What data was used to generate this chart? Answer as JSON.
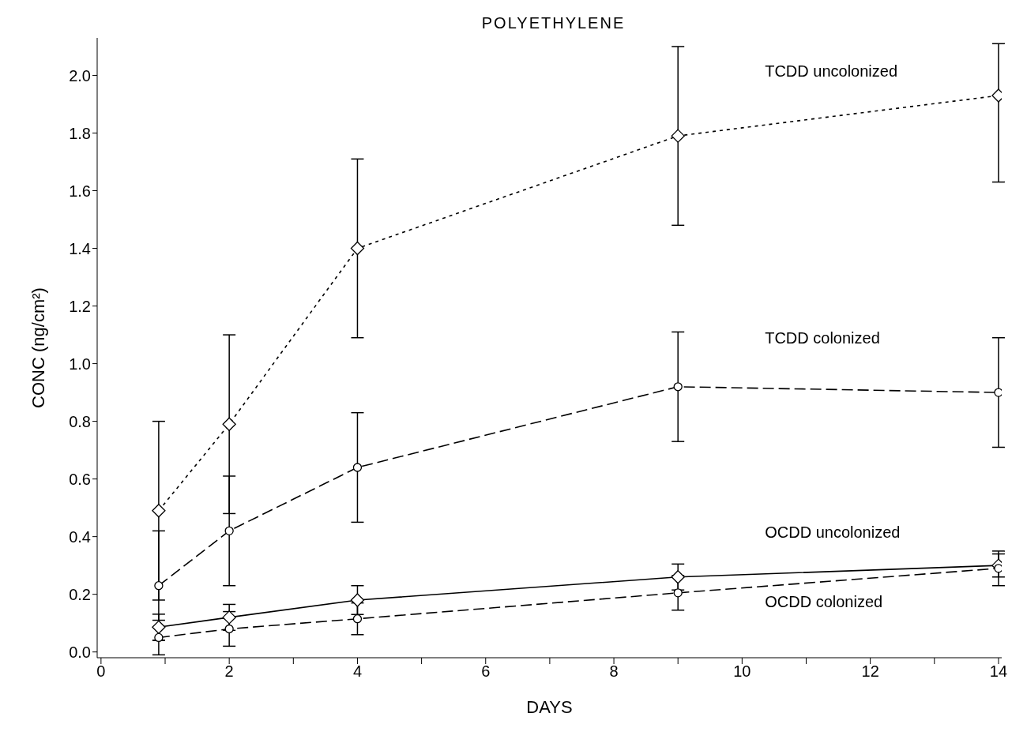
{
  "chart_data": {
    "type": "line",
    "title": "POLYETHYLENE",
    "xlabel": "DAYS",
    "ylabel": "CONC (ng/cm²)",
    "x": [
      0.9,
      2,
      4,
      9,
      14
    ],
    "xlim": [
      -0.06,
      14.05
    ],
    "xticks": [
      0,
      {
        "value": 1,
        "label": null
      },
      2,
      {
        "value": 3,
        "label": null
      },
      4,
      {
        "value": 5,
        "label": null
      },
      6,
      {
        "value": 7,
        "label": null
      },
      8,
      {
        "value": 9,
        "label": null
      },
      10,
      {
        "value": 11,
        "label": null
      },
      12,
      {
        "value": 13,
        "label": null
      },
      14
    ],
    "ylim": [
      -0.02,
      2.13
    ],
    "yticks": [
      {
        "value": 0,
        "label": "0.0"
      },
      0.2,
      0.4,
      0.6,
      0.8,
      {
        "value": 1,
        "label": "1.0"
      },
      1.2,
      1.4,
      1.6,
      1.8,
      {
        "value": 2,
        "label": "2.0"
      }
    ],
    "series": [
      {
        "name": "TCDD uncolonized",
        "color": "#000000",
        "marker": "diamond",
        "line_style": "dotted",
        "values": [
          0.49,
          0.79,
          1.4,
          1.79,
          1.93
        ],
        "errors": [
          0.31,
          0.31,
          0.31,
          0.31,
          [
            1.63,
            2.11
          ]
        ]
      },
      {
        "name": "TCDD colonized",
        "color": "#000000",
        "marker": "circle",
        "line_style": "dashed",
        "values": [
          0.23,
          0.42,
          0.64,
          0.92,
          0.9
        ],
        "errors": [
          0.19,
          0.19,
          0.19,
          0.19,
          0.19
        ]
      },
      {
        "name": "OCDD uncolonized",
        "color": "#000000",
        "marker": "diamond",
        "line_style": "solid",
        "values": [
          0.086,
          0.12,
          0.18,
          0.26,
          0.3
        ],
        "errors": [
          0.045,
          0.045,
          0.05,
          0.045,
          0.04
        ]
      },
      {
        "name": "OCDD colonized",
        "color": "#000000",
        "marker": "circle",
        "line_style": "dashed",
        "values": [
          0.05,
          0.08,
          0.115,
          0.205,
          0.29
        ],
        "errors": [
          0.06,
          0.06,
          0.055,
          0.06,
          0.06
        ]
      }
    ]
  }
}
